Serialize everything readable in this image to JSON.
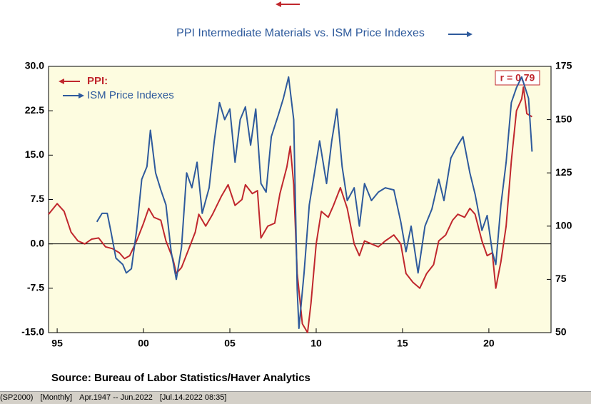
{
  "chart_data": {
    "type": "line",
    "title": "PPI Intermediate Materials vs. ISM Price Indexes",
    "annotation": "r = 0.79",
    "source": "Source:  Bureau of Labor Statistics/Haver Analytics",
    "xlim": [
      1994.5,
      2023.6
    ],
    "xticks": [
      {
        "value": 1995,
        "label": "95"
      },
      {
        "value": 2000,
        "label": "00"
      },
      {
        "value": 2005,
        "label": "05"
      },
      {
        "value": 2010,
        "label": "10"
      },
      {
        "value": 2015,
        "label": "15"
      },
      {
        "value": 2020,
        "label": "20"
      }
    ],
    "ylim": [
      -15,
      30
    ],
    "yticks": [
      {
        "value": -15,
        "label": "-15.0"
      },
      -7.5,
      {
        "value": 0,
        "label": "0.0"
      },
      7.5,
      {
        "value": 15,
        "label": "15.0"
      },
      22.5,
      {
        "value": 30,
        "label": "30.0"
      }
    ],
    "y2lim": [
      50,
      175
    ],
    "y2ticks": [
      50,
      75,
      100,
      125,
      150,
      175
    ],
    "zero_line": true,
    "series": [
      {
        "name": "PPI:",
        "color": "#c0272d",
        "axis": "y",
        "x": [
          1994.5,
          1995.0,
          1995.4,
          1995.8,
          1996.2,
          1996.6,
          1997.0,
          1997.4,
          1997.8,
          1998.2,
          1998.6,
          1998.9,
          1999.2,
          1999.6,
          2000.0,
          2000.3,
          2000.6,
          2001.0,
          2001.3,
          2001.7,
          2001.9,
          2002.2,
          2002.6,
          2003.0,
          2003.2,
          2003.6,
          2004.0,
          2004.5,
          2004.9,
          2005.3,
          2005.7,
          2005.9,
          2006.3,
          2006.6,
          2006.8,
          2007.2,
          2007.6,
          2007.9,
          2008.3,
          2008.5,
          2008.7,
          2008.9,
          2009.2,
          2009.5,
          2009.7,
          2010.0,
          2010.3,
          2010.7,
          2011.0,
          2011.4,
          2011.8,
          2012.2,
          2012.5,
          2012.8,
          2013.2,
          2013.6,
          2014.0,
          2014.5,
          2014.9,
          2015.2,
          2015.6,
          2016.0,
          2016.4,
          2016.8,
          2017.1,
          2017.5,
          2017.9,
          2018.2,
          2018.6,
          2018.9,
          2019.2,
          2019.6,
          2019.9,
          2020.2,
          2020.4,
          2020.7,
          2021.0,
          2021.3,
          2021.6,
          2021.9,
          2022.0,
          2022.2,
          2022.5
        ],
        "values": [
          5.0,
          6.8,
          5.5,
          2.0,
          0.5,
          0.0,
          0.8,
          1.0,
          -0.5,
          -0.8,
          -1.5,
          -2.5,
          -2.0,
          0.5,
          3.5,
          6.0,
          4.5,
          4.0,
          0.5,
          -2.5,
          -5.0,
          -4.0,
          -1.0,
          2.0,
          5.0,
          3.0,
          5.0,
          8.0,
          10.0,
          6.5,
          7.5,
          10.0,
          8.5,
          9.0,
          1.0,
          3.0,
          3.5,
          8.5,
          13.0,
          16.5,
          10.0,
          -5.0,
          -13.5,
          -15.0,
          -10.0,
          0.0,
          5.5,
          4.5,
          6.5,
          9.5,
          6.0,
          0.0,
          -2.0,
          0.5,
          0.0,
          -0.5,
          0.5,
          1.5,
          0.0,
          -5.0,
          -6.5,
          -7.5,
          -5.0,
          -3.5,
          0.5,
          1.5,
          4.0,
          5.0,
          4.5,
          6.0,
          5.0,
          0.5,
          -2.0,
          -1.5,
          -7.5,
          -3.0,
          3.0,
          14.0,
          22.5,
          24.5,
          26.5,
          22.0,
          21.5
        ]
      },
      {
        "name": "ISM Price Indexes",
        "color": "#2e5a9c",
        "axis": "y2",
        "x": [
          1997.3,
          1997.6,
          1997.9,
          1998.1,
          1998.4,
          1998.8,
          1999.0,
          1999.3,
          1999.6,
          1999.9,
          2000.2,
          2000.4,
          2000.7,
          2001.0,
          2001.3,
          2001.6,
          2001.9,
          2002.2,
          2002.5,
          2002.8,
          2003.1,
          2003.4,
          2003.8,
          2004.1,
          2004.4,
          2004.7,
          2005.0,
          2005.3,
          2005.6,
          2005.9,
          2006.2,
          2006.5,
          2006.8,
          2007.1,
          2007.4,
          2007.8,
          2008.1,
          2008.4,
          2008.7,
          2008.9,
          2009.0,
          2009.3,
          2009.6,
          2009.9,
          2010.2,
          2010.6,
          2010.9,
          2011.2,
          2011.5,
          2011.8,
          2012.2,
          2012.5,
          2012.8,
          2013.2,
          2013.6,
          2014.0,
          2014.5,
          2014.9,
          2015.2,
          2015.5,
          2015.9,
          2016.3,
          2016.7,
          2017.1,
          2017.4,
          2017.8,
          2018.2,
          2018.5,
          2018.9,
          2019.2,
          2019.6,
          2019.9,
          2020.2,
          2020.4,
          2020.7,
          2021.0,
          2021.3,
          2021.6,
          2021.9,
          2022.1,
          2022.3,
          2022.5
        ],
        "values": [
          102,
          106,
          106,
          98,
          85,
          82,
          78,
          80,
          98,
          122,
          128,
          145,
          125,
          117,
          110,
          88,
          75,
          90,
          125,
          118,
          130,
          106,
          118,
          140,
          158,
          150,
          155,
          130,
          150,
          156,
          138,
          155,
          120,
          116,
          142,
          152,
          160,
          170,
          150,
          70,
          52,
          78,
          110,
          125,
          140,
          120,
          140,
          155,
          128,
          112,
          118,
          100,
          120,
          112,
          116,
          118,
          117,
          102,
          88,
          100,
          78,
          100,
          108,
          122,
          112,
          132,
          138,
          142,
          125,
          115,
          98,
          105,
          88,
          82,
          110,
          130,
          158,
          165,
          170,
          165,
          160,
          135
        ]
      }
    ],
    "status": [
      "(SP2000)",
      "[Monthly]",
      "Apr.1947 -- Jun.2022",
      "[Jul.14.2022 08:35]"
    ]
  }
}
